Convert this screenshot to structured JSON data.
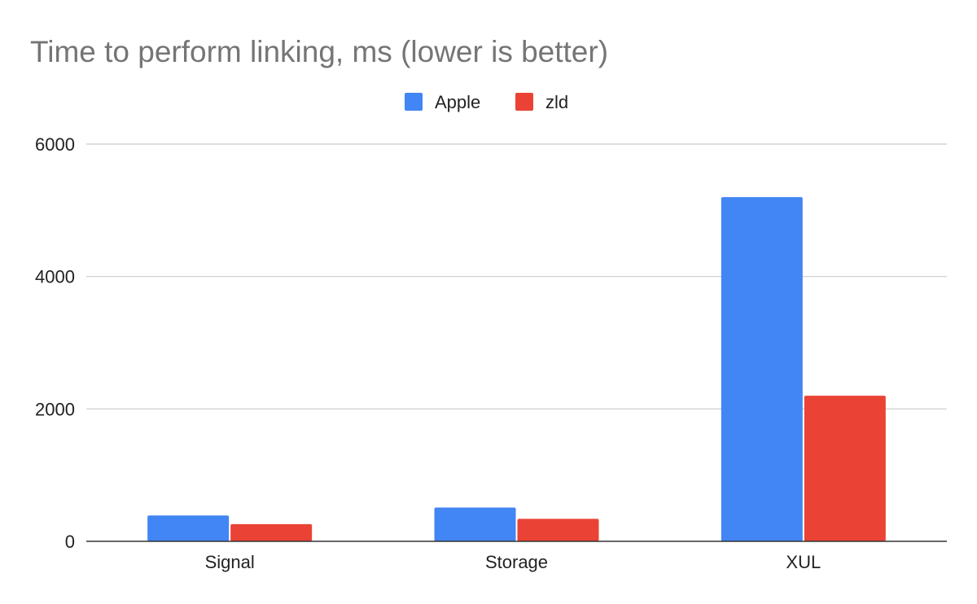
{
  "chart_data": {
    "type": "bar",
    "title": "Time to perform linking, ms (lower is better)",
    "xlabel": "",
    "ylabel": "",
    "categories": [
      "Signal",
      "Storage",
      "XUL"
    ],
    "series": [
      {
        "name": "Apple",
        "color": "#4285f4",
        "values": [
          390,
          510,
          5200
        ]
      },
      {
        "name": "zld",
        "color": "#ea4335",
        "values": [
          260,
          340,
          2200
        ]
      }
    ],
    "ylim": [
      0,
      6000
    ],
    "yticks": [
      0,
      2000,
      4000,
      6000
    ],
    "grid": true,
    "legend_position": "top-center"
  }
}
